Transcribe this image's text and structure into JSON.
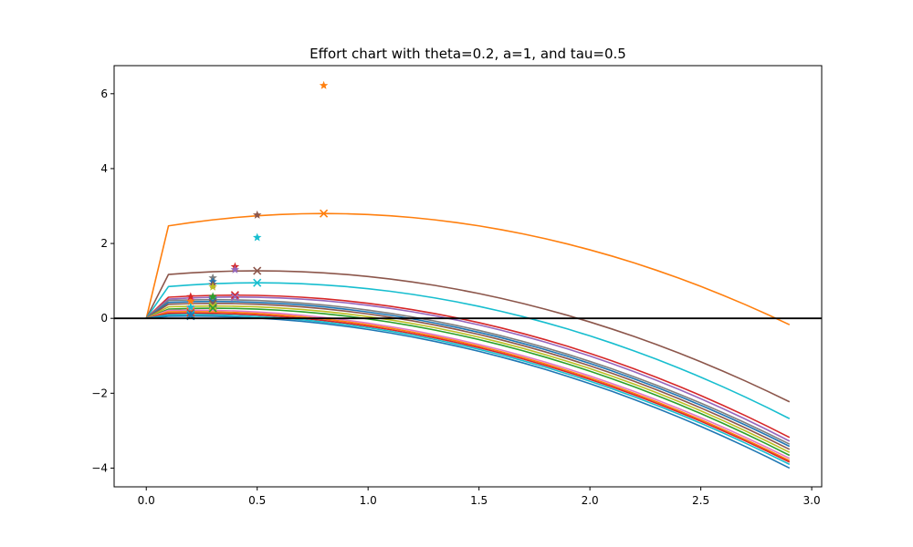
{
  "chart_data": {
    "type": "line",
    "title": "Effort chart with theta=0.2, a=1, and tau=0.5",
    "xlabel": "",
    "ylabel": "",
    "xlim": [
      -0.145,
      3.045
    ],
    "ylim": [
      -4.5,
      6.75
    ],
    "xticks": [
      0.0,
      0.5,
      1.0,
      1.5,
      2.0,
      2.5,
      3.0
    ],
    "xtick_labels": [
      "0.0",
      "0.5",
      "1.0",
      "1.5",
      "2.0",
      "2.5",
      "3.0"
    ],
    "yticks": [
      -4,
      -2,
      0,
      2,
      4,
      6
    ],
    "ytick_labels": [
      "−4",
      "−2",
      "0",
      "2",
      "4",
      "6"
    ],
    "grid": false,
    "reference_line": {
      "y": 0,
      "color": "#000000"
    },
    "x": [
      0.0,
      0.1,
      0.2,
      0.3,
      0.4,
      0.5,
      0.6,
      0.7,
      0.8,
      0.9,
      1.0,
      1.1,
      1.2,
      1.3,
      1.4,
      1.5,
      1.6,
      1.7,
      1.8,
      1.9,
      2.0,
      2.1,
      2.2,
      2.3,
      2.4,
      2.5,
      2.6,
      2.7,
      2.8,
      2.9
    ],
    "series": [
      {
        "color": "#ff7f0e",
        "peak": 2.8,
        "end": -0.17,
        "kink": 0.1,
        "argmax": 0.8,
        "star": [
          0.8,
          6.22
        ],
        "cross": [
          0.8,
          2.8
        ]
      },
      {
        "color": "#8c564b",
        "peak": 1.27,
        "end": -2.23,
        "kink": 0.1,
        "argmax": 0.5,
        "star": [
          0.5,
          2.76
        ],
        "cross": [
          0.5,
          1.27
        ]
      },
      {
        "color": "#17becf",
        "peak": 0.95,
        "end": -2.68,
        "kink": 0.1,
        "argmax": 0.5,
        "star": [
          0.5,
          2.16
        ],
        "cross": [
          0.5,
          0.95
        ]
      },
      {
        "color": "#d62728",
        "peak": 0.62,
        "end": -3.18,
        "kink": 0.1,
        "argmax": 0.4,
        "star": [
          0.4,
          1.38
        ],
        "cross": [
          0.4,
          0.62
        ]
      },
      {
        "color": "#9467bd",
        "peak": 0.57,
        "end": -3.28,
        "kink": 0.1,
        "argmax": 0.4,
        "star": [
          0.4,
          1.3
        ],
        "cross": [
          0.4,
          0.57
        ]
      },
      {
        "color": "#7f7f7f",
        "peak": 0.5,
        "end": -3.36,
        "kink": 0.1,
        "argmax": 0.3,
        "star": [
          0.3,
          1.08
        ],
        "cross": [
          0.3,
          0.5
        ]
      },
      {
        "color": "#1f77b4",
        "peak": 0.45,
        "end": -3.42,
        "kink": 0.1,
        "argmax": 0.3,
        "star": [
          0.3,
          0.98
        ],
        "cross": [
          0.3,
          0.45
        ]
      },
      {
        "color": "#8c564b",
        "peak": 0.4,
        "end": -3.5,
        "kink": 0.1,
        "argmax": 0.3,
        "star": [
          0.3,
          0.9
        ],
        "cross": [
          0.3,
          0.4
        ]
      },
      {
        "color": "#bcbd22",
        "peak": 0.33,
        "end": -3.58,
        "kink": 0.1,
        "argmax": 0.3,
        "star": [
          0.3,
          0.84
        ],
        "cross": [
          0.3,
          0.33
        ]
      },
      {
        "color": "#2ca02c",
        "peak": 0.27,
        "end": -3.66,
        "kink": 0.1,
        "argmax": 0.3,
        "star": [
          0.3,
          0.58
        ],
        "cross": [
          0.3,
          0.27
        ]
      },
      {
        "color": "#e377c2",
        "peak": 0.22,
        "end": -3.74,
        "kink": 0.1,
        "argmax": 0.2,
        "star": [
          0.2,
          0.5
        ],
        "cross": [
          0.2,
          0.22
        ]
      },
      {
        "color": "#ff7f0e",
        "peak": 0.18,
        "end": -3.8,
        "kink": 0.1,
        "argmax": 0.2,
        "star": [
          0.2,
          0.45
        ],
        "cross": [
          0.2,
          0.18
        ]
      },
      {
        "color": "#d62728",
        "peak": 0.14,
        "end": -3.84,
        "kink": 0.1,
        "argmax": 0.2,
        "star": [
          0.2,
          0.58
        ],
        "cross": [
          0.2,
          0.14
        ]
      },
      {
        "color": "#17becf",
        "peak": 0.1,
        "end": -3.9,
        "kink": 0.1,
        "argmax": 0.2,
        "star": [
          0.2,
          0.3
        ],
        "cross": [
          0.2,
          0.1
        ]
      },
      {
        "color": "#1f77b4",
        "peak": 0.06,
        "end": -4.0,
        "kink": 0.1,
        "argmax": 0.2,
        "star": [
          0.2,
          0.1
        ],
        "cross": [
          0.2,
          0.06
        ]
      }
    ]
  }
}
